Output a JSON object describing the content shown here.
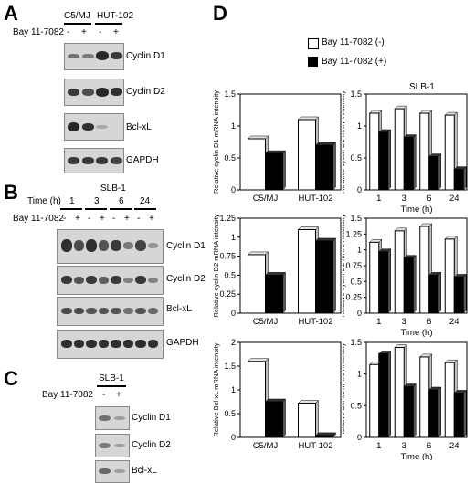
{
  "figure": {
    "panel_labels": {
      "a": "A",
      "b": "B",
      "c": "C",
      "d": "D"
    },
    "treatment_label": "Bay 11-7082",
    "minus": "-",
    "plus": "+",
    "legend": {
      "neg": "Bay 11-7082 (-)",
      "pos": "Bay 11-7082 (+)"
    }
  },
  "panelA": {
    "cell_lines": [
      "C5/MJ",
      "HUT-102"
    ],
    "blots": [
      "Cyclin D1",
      "Cyclin D2",
      "Bcl-xL",
      "GAPDH"
    ]
  },
  "panelB": {
    "title": "SLB-1",
    "time_label": "Time (h)",
    "times": [
      "1",
      "3",
      "6",
      "24"
    ],
    "blots": [
      "Cyclin D1",
      "Cyclin D2",
      "Bcl-xL",
      "GAPDH"
    ]
  },
  "panelC": {
    "title": "SLB-1",
    "blots": [
      "Cyclin D1",
      "Cyclin D2",
      "Bcl-xL"
    ]
  },
  "panelD": {
    "right_title": "SLB-1"
  },
  "chart_data": [
    {
      "type": "bar",
      "ylabel": "Relative cyclin D1 mRNA intensity",
      "xlabel": "",
      "categories": [
        "C5/MJ",
        "HUT-102"
      ],
      "ylim": [
        0,
        1.5
      ],
      "yticks": [
        "0",
        "0.5",
        "1",
        "1.5"
      ],
      "series": [
        {
          "name": "Bay 11-7082 (-)",
          "values": [
            0.8,
            1.1
          ]
        },
        {
          "name": "Bay 11-7082 (+)",
          "values": [
            0.57,
            0.7
          ]
        }
      ]
    },
    {
      "type": "bar",
      "ylabel": "Relative cyclin D1 mRNA intensity",
      "xlabel": "Time (h)",
      "categories": [
        "1",
        "3",
        "6",
        "24"
      ],
      "ylim": [
        0,
        1.5
      ],
      "yticks": [
        "0",
        "0.5",
        "1",
        "1.5"
      ],
      "series": [
        {
          "name": "Bay 11-7082 (-)",
          "values": [
            1.2,
            1.27,
            1.2,
            1.17
          ]
        },
        {
          "name": "Bay 11-7082 (+)",
          "values": [
            0.9,
            0.82,
            0.52,
            0.32
          ]
        }
      ]
    },
    {
      "type": "bar",
      "ylabel": "Relative cyclin D2 mRNA intensity",
      "xlabel": "",
      "categories": [
        "C5/MJ",
        "HUT-102"
      ],
      "ylim": [
        0,
        1.25
      ],
      "yticks": [
        "0",
        "0.25",
        "0.5",
        "0.75",
        "1",
        "1.25"
      ],
      "series": [
        {
          "name": "Bay 11-7082 (-)",
          "values": [
            0.77,
            1.1
          ]
        },
        {
          "name": "Bay 11-7082 (+)",
          "values": [
            0.5,
            0.95
          ]
        }
      ]
    },
    {
      "type": "bar",
      "ylabel": "Relative cyclin D2 mRNA intensity",
      "xlabel": "Time (h)",
      "categories": [
        "1",
        "3",
        "6",
        "24"
      ],
      "ylim": [
        0,
        1.5
      ],
      "yticks": [
        "0",
        "0.25",
        "0.5",
        "0.75",
        "1",
        "1.25",
        "1.5"
      ],
      "series": [
        {
          "name": "Bay 11-7082 (-)",
          "values": [
            1.12,
            1.3,
            1.37,
            1.17
          ]
        },
        {
          "name": "Bay 11-7082 (+)",
          "values": [
            0.97,
            0.87,
            0.6,
            0.57
          ]
        }
      ]
    },
    {
      "type": "bar",
      "ylabel": "Relative Bcl-xL mRNA intensity",
      "xlabel": "",
      "categories": [
        "C5/MJ",
        "HUT-102"
      ],
      "ylim": [
        0,
        2
      ],
      "yticks": [
        "0",
        "0.5",
        "1",
        "1.5",
        "2"
      ],
      "series": [
        {
          "name": "Bay 11-7082 (-)",
          "values": [
            1.6,
            0.72
          ]
        },
        {
          "name": "Bay 11-7082 (+)",
          "values": [
            0.75,
            0.04
          ]
        }
      ]
    },
    {
      "type": "bar",
      "ylabel": "Relative Bcl-xL mRNA intensity",
      "xlabel": "Time (h)",
      "categories": [
        "1",
        "3",
        "6",
        "24"
      ],
      "ylim": [
        0,
        1.5
      ],
      "yticks": [
        "0",
        "0.5",
        "1",
        "1.5"
      ],
      "series": [
        {
          "name": "Bay 11-7082 (-)",
          "values": [
            1.15,
            1.42,
            1.27,
            1.18
          ]
        },
        {
          "name": "Bay 11-7082 (+)",
          "values": [
            1.32,
            0.8,
            0.75,
            0.7
          ]
        }
      ]
    }
  ]
}
